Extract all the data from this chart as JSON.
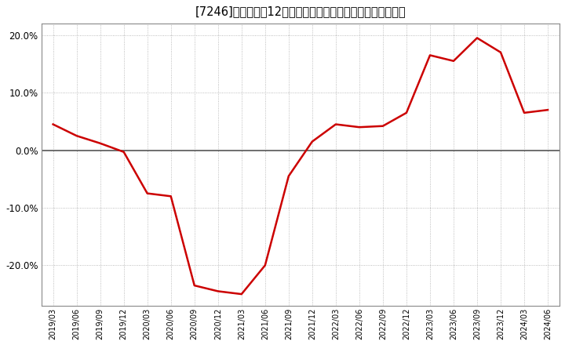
{
  "title": "[7246]　売上高の12か月移動合計の対前年同期増減率の推移",
  "line_color": "#cc0000",
  "background_color": "#ffffff",
  "plot_bg_color": "#ffffff",
  "grid_color": "#aaaaaa",
  "zero_line_color": "#555555",
  "dates": [
    "2019/03",
    "2019/06",
    "2019/09",
    "2019/12",
    "2020/03",
    "2020/06",
    "2020/09",
    "2020/12",
    "2021/03",
    "2021/06",
    "2021/09",
    "2021/12",
    "2022/03",
    "2022/06",
    "2022/09",
    "2022/12",
    "2023/03",
    "2023/06",
    "2023/09",
    "2023/12",
    "2024/03",
    "2024/06"
  ],
  "values": [
    4.5,
    2.5,
    1.2,
    -0.3,
    -7.5,
    -8.0,
    -23.5,
    -24.5,
    -25.0,
    -20.0,
    -4.5,
    1.5,
    4.5,
    4.0,
    4.2,
    6.5,
    16.5,
    15.5,
    19.5,
    17.0,
    6.5,
    7.0
  ],
  "ylim": [
    -27,
    22
  ],
  "yticks": [
    -20.0,
    -10.0,
    0.0,
    10.0,
    20.0
  ],
  "figsize": [
    7.2,
    4.4
  ],
  "dpi": 100
}
